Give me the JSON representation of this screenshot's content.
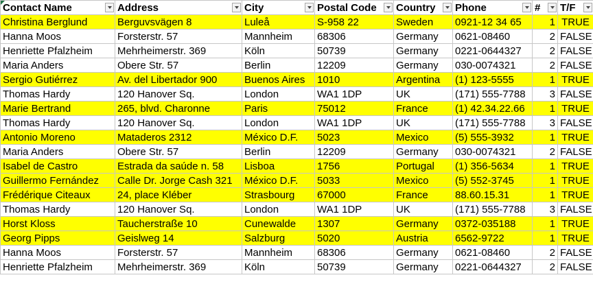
{
  "columns": [
    {
      "key": "name",
      "label": "Contact Name"
    },
    {
      "key": "address",
      "label": "Address"
    },
    {
      "key": "city",
      "label": "City"
    },
    {
      "key": "postal",
      "label": "Postal Code"
    },
    {
      "key": "country",
      "label": "Country"
    },
    {
      "key": "phone",
      "label": "Phone"
    },
    {
      "key": "num",
      "label": "#"
    },
    {
      "key": "tf",
      "label": "T/F"
    }
  ],
  "highlight_color": "#ffff00",
  "icons": {
    "filter": "filter-dropdown-icon"
  },
  "rows": [
    {
      "name": "Christina Berglund",
      "address": "Berguvsvägen  8",
      "city": "Luleå",
      "postal": "S-958 22",
      "country": "Sweden",
      "phone": "0921-12 34 65",
      "num": "1",
      "tf": "TRUE",
      "highlight": true
    },
    {
      "name": "Hanna Moos",
      "address": "Forsterstr. 57",
      "city": "Mannheim",
      "postal": "68306",
      "country": "Germany",
      "phone": "0621-08460",
      "num": "2",
      "tf": "FALSE",
      "highlight": false
    },
    {
      "name": "Henriette Pfalzheim",
      "address": "Mehrheimerstr. 369",
      "city": "Köln",
      "postal": "50739",
      "country": "Germany",
      "phone": "0221-0644327",
      "num": "2",
      "tf": "FALSE",
      "highlight": false
    },
    {
      "name": "Maria Anders",
      "address": "Obere Str. 57",
      "city": "Berlin",
      "postal": "12209",
      "country": "Germany",
      "phone": "030-0074321",
      "num": "2",
      "tf": "FALSE",
      "highlight": false
    },
    {
      "name": "Sergio Gutiérrez",
      "address": "Av. del Libertador 900",
      "city": "Buenos Aires",
      "postal": "1010",
      "country": "Argentina",
      "phone": "(1) 123-5555",
      "num": "1",
      "tf": "TRUE",
      "highlight": true
    },
    {
      "name": "Thomas Hardy",
      "address": "120 Hanover Sq.",
      "city": "London",
      "postal": "WA1 1DP",
      "country": "UK",
      "phone": "(171) 555-7788",
      "num": "3",
      "tf": "FALSE",
      "highlight": false
    },
    {
      "name": "Marie Bertrand",
      "address": "265, blvd. Charonne",
      "city": "Paris",
      "postal": "75012",
      "country": "France",
      "phone": "(1) 42.34.22.66",
      "num": "1",
      "tf": "TRUE",
      "highlight": true
    },
    {
      "name": "Thomas Hardy",
      "address": "120 Hanover Sq.",
      "city": "London",
      "postal": "WA1 1DP",
      "country": "UK",
      "phone": "(171) 555-7788",
      "num": "3",
      "tf": "FALSE",
      "highlight": false
    },
    {
      "name": "Antonio Moreno",
      "address": "Mataderos  2312",
      "city": "México D.F.",
      "postal": "5023",
      "country": "Mexico",
      "phone": "(5) 555-3932",
      "num": "1",
      "tf": "TRUE",
      "highlight": true
    },
    {
      "name": "Maria Anders",
      "address": "Obere Str. 57",
      "city": "Berlin",
      "postal": "12209",
      "country": "Germany",
      "phone": "030-0074321",
      "num": "2",
      "tf": "FALSE",
      "highlight": false
    },
    {
      "name": "Isabel de Castro",
      "address": "Estrada da saúde n. 58",
      "city": "Lisboa",
      "postal": "1756",
      "country": "Portugal",
      "phone": "(1) 356-5634",
      "num": "1",
      "tf": "TRUE",
      "highlight": true
    },
    {
      "name": "Guillermo Fernández",
      "address": "Calle Dr. Jorge Cash 321",
      "city": "México D.F.",
      "postal": "5033",
      "country": "Mexico",
      "phone": "(5) 552-3745",
      "num": "1",
      "tf": "TRUE",
      "highlight": true
    },
    {
      "name": "Frédérique Citeaux",
      "address": "24, place Kléber",
      "city": "Strasbourg",
      "postal": "67000",
      "country": "France",
      "phone": "88.60.15.31",
      "num": "1",
      "tf": "TRUE",
      "highlight": true
    },
    {
      "name": "Thomas Hardy",
      "address": "120 Hanover Sq.",
      "city": "London",
      "postal": "WA1 1DP",
      "country": "UK",
      "phone": "(171) 555-7788",
      "num": "3",
      "tf": "FALSE",
      "highlight": false
    },
    {
      "name": "Horst Kloss",
      "address": "Taucherstraße 10",
      "city": "Cunewalde",
      "postal": "1307",
      "country": "Germany",
      "phone": "0372-035188",
      "num": "1",
      "tf": "TRUE",
      "highlight": true
    },
    {
      "name": "Georg Pipps",
      "address": "Geislweg 14",
      "city": "Salzburg",
      "postal": "5020",
      "country": "Austria",
      "phone": "6562-9722",
      "num": "1",
      "tf": "TRUE",
      "highlight": true
    },
    {
      "name": "Hanna Moos",
      "address": "Forsterstr. 57",
      "city": "Mannheim",
      "postal": "68306",
      "country": "Germany",
      "phone": "0621-08460",
      "num": "2",
      "tf": "FALSE",
      "highlight": false
    },
    {
      "name": "Henriette Pfalzheim",
      "address": "Mehrheimerstr. 369",
      "city": "Köln",
      "postal": "50739",
      "country": "Germany",
      "phone": "0221-0644327",
      "num": "2",
      "tf": "FALSE",
      "highlight": false
    }
  ]
}
